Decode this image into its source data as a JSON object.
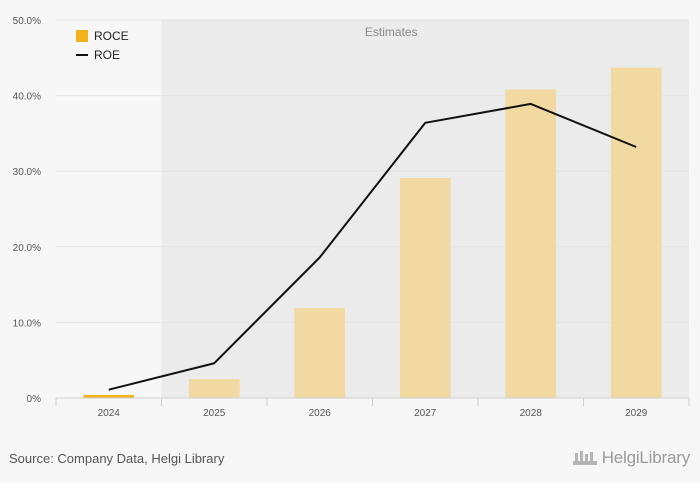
{
  "chart_data": {
    "type": "bar",
    "categories": [
      "2024",
      "2025",
      "2026",
      "2027",
      "2028",
      "2029"
    ],
    "series": [
      {
        "name": "ROCE",
        "kind": "bar",
        "values": [
          0.4,
          2.5,
          11.9,
          29.1,
          40.8,
          43.7
        ]
      },
      {
        "name": "ROE",
        "kind": "line",
        "values": [
          1.1,
          4.6,
          18.6,
          36.4,
          38.9,
          33.2
        ]
      }
    ],
    "ylim": [
      0,
      50
    ],
    "yticks": [
      "0%",
      "10.0%",
      "20.0%",
      "30.0%",
      "40.0%",
      "50.0%"
    ],
    "estimates_label": "Estimates",
    "estimates_from_index": 1,
    "grid": true,
    "legend_position": "top-left",
    "colors": {
      "bar_actual": "#f2b21a",
      "bar_estimate": "#f2d9a2",
      "line": "#111111",
      "estimates_bg": "#ebebeb",
      "grid": "#e3e3e3"
    }
  },
  "footer": {
    "source": "Source: Company Data, Helgi Library",
    "brand": "HelgiLibrary",
    "brand_icon": "helgi-library-logo-icon"
  }
}
